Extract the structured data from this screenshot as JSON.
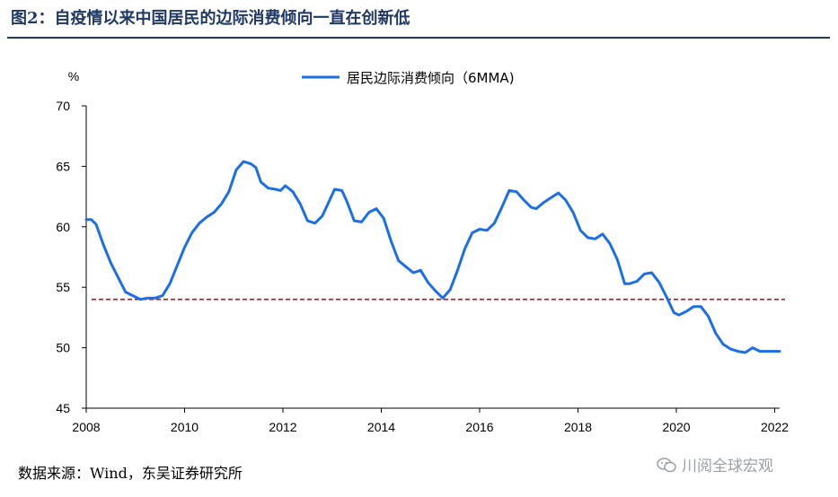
{
  "figure_title": "图2：自疫情以来中国居民的边际消费倾向一直在创新低",
  "source_note": "数据来源：Wind，东吴证券研究所",
  "watermark": "川阅全球宏观",
  "colors": {
    "title": "#1f3864",
    "series": "#1a6fe8",
    "reference_line": "#b5121b",
    "axis": "#000000"
  },
  "chart_data": {
    "type": "line",
    "ylabel": "%",
    "ylim": [
      45,
      70
    ],
    "yticks": [
      45,
      50,
      55,
      60,
      65,
      70
    ],
    "xlim": [
      2008,
      2022.1
    ],
    "xticks": [
      2008,
      2010,
      2012,
      2014,
      2016,
      2018,
      2020,
      2022
    ],
    "xtick_labels": [
      "2008",
      "2010",
      "2012",
      "2014",
      "2016",
      "2018",
      "2020",
      "2022"
    ],
    "legend_position": "top-center",
    "series": [
      {
        "name": "居民边际消费倾向（6MMA)",
        "x": [
          2008.0,
          2008.1,
          2008.2,
          2008.35,
          2008.5,
          2008.65,
          2008.8,
          2008.95,
          2009.1,
          2009.25,
          2009.4,
          2009.55,
          2009.7,
          2009.85,
          2010.0,
          2010.15,
          2010.3,
          2010.45,
          2010.6,
          2010.75,
          2010.9,
          2011.05,
          2011.2,
          2011.35,
          2011.45,
          2011.55,
          2011.7,
          2011.85,
          2011.95,
          2012.05,
          2012.2,
          2012.35,
          2012.5,
          2012.65,
          2012.8,
          2012.95,
          2013.05,
          2013.2,
          2013.3,
          2013.45,
          2013.6,
          2013.75,
          2013.9,
          2014.05,
          2014.2,
          2014.35,
          2014.5,
          2014.65,
          2014.8,
          2014.95,
          2015.1,
          2015.25,
          2015.4,
          2015.55,
          2015.7,
          2015.85,
          2016.0,
          2016.15,
          2016.3,
          2016.45,
          2016.6,
          2016.75,
          2016.9,
          2017.05,
          2017.15,
          2017.3,
          2017.45,
          2017.6,
          2017.75,
          2017.9,
          2018.05,
          2018.2,
          2018.35,
          2018.5,
          2018.65,
          2018.8,
          2018.95,
          2019.05,
          2019.2,
          2019.35,
          2019.5,
          2019.65,
          2019.8,
          2019.95,
          2020.05,
          2020.2,
          2020.35,
          2020.5,
          2020.65,
          2020.8,
          2020.95,
          2021.1,
          2021.25,
          2021.4,
          2021.55,
          2021.7,
          2021.85,
          2022.0,
          2022.05,
          2022.1
        ],
        "y": [
          60.6,
          60.6,
          60.2,
          58.5,
          57.0,
          55.8,
          54.6,
          54.3,
          54.0,
          54.1,
          54.1,
          54.3,
          55.3,
          56.8,
          58.3,
          59.5,
          60.3,
          60.8,
          61.2,
          61.9,
          62.9,
          64.7,
          65.4,
          65.2,
          64.9,
          63.7,
          63.2,
          63.1,
          63.0,
          63.4,
          62.9,
          61.9,
          60.5,
          60.3,
          60.9,
          62.2,
          63.1,
          63.0,
          62.1,
          60.5,
          60.4,
          61.2,
          61.5,
          60.7,
          58.8,
          57.2,
          56.7,
          56.2,
          56.4,
          55.4,
          54.7,
          54.1,
          54.8,
          56.4,
          58.2,
          59.5,
          59.8,
          59.7,
          60.3,
          61.6,
          63.0,
          62.9,
          62.2,
          61.6,
          61.5,
          62.0,
          62.4,
          62.8,
          62.2,
          61.2,
          59.7,
          59.1,
          59.0,
          59.4,
          58.6,
          57.3,
          55.3,
          55.3,
          55.5,
          56.1,
          56.2,
          55.4,
          54.2,
          52.9,
          52.7,
          53.0,
          53.4,
          53.4,
          52.6,
          51.2,
          50.3,
          49.9,
          49.7,
          49.6,
          50.0,
          49.7,
          49.7,
          49.7,
          49.7,
          49.7
        ]
      }
    ],
    "reference_line": {
      "y": 54.0,
      "style": "dashed"
    }
  }
}
